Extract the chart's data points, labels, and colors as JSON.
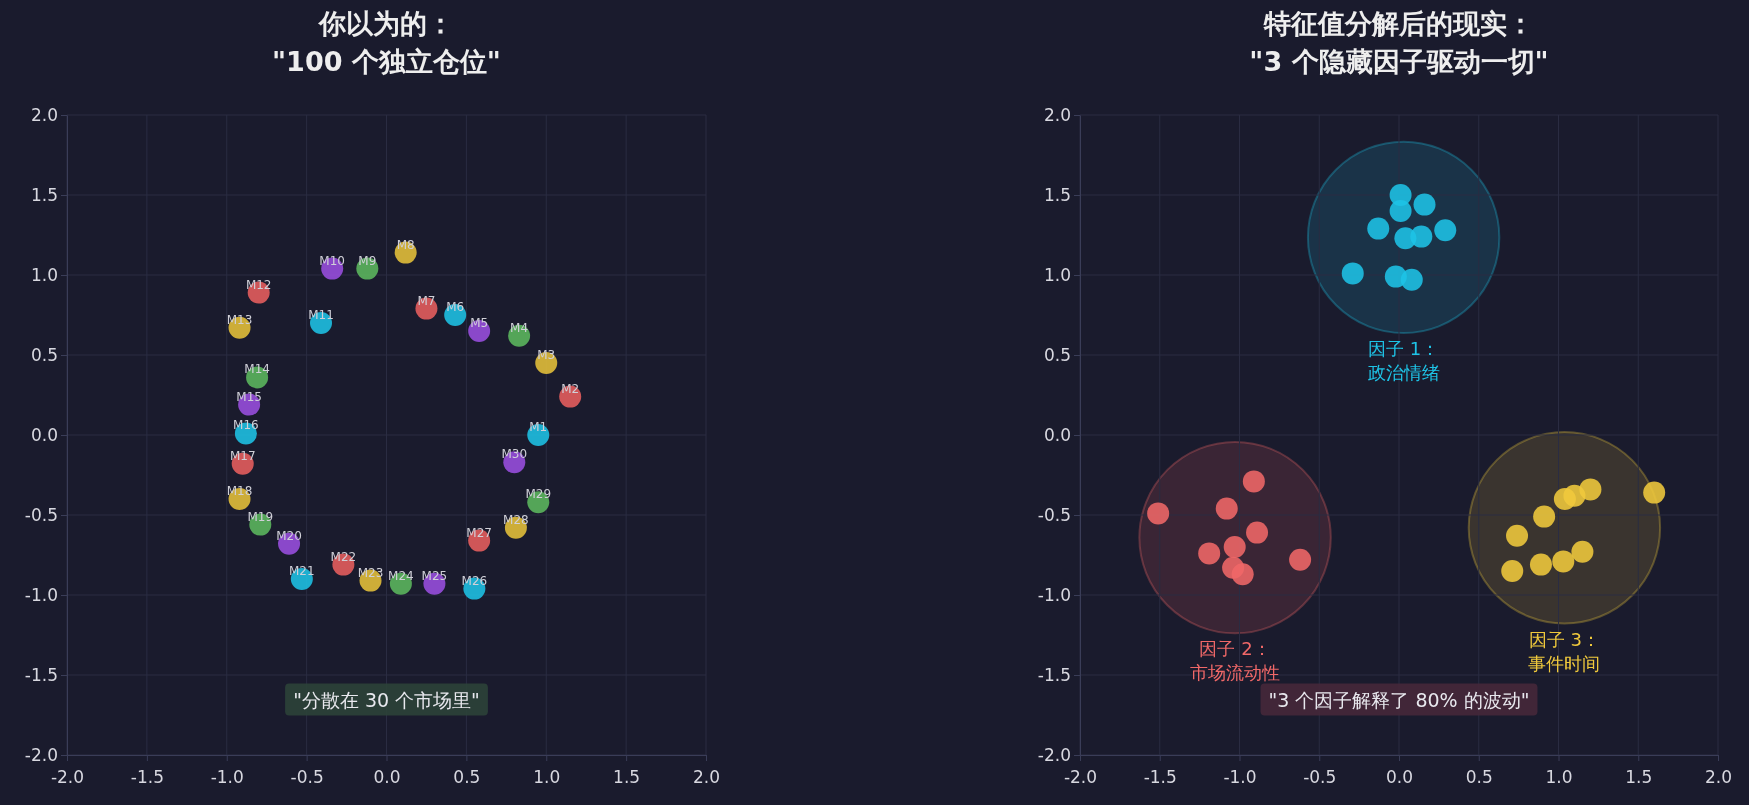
{
  "chart_data": [
    {
      "type": "scatter",
      "title": "你以为的：\n\"100 个独立仓位\"",
      "xlim": [
        -2,
        2
      ],
      "ylim": [
        -2,
        2
      ],
      "xticks": [
        {
          "value": -2,
          "label": "-2.0"
        },
        {
          "value": -1.5,
          "label": "-1.5"
        },
        {
          "value": -1,
          "label": "-1.0"
        },
        {
          "value": -0.5,
          "label": "-0.5"
        },
        {
          "value": 0,
          "label": "0.0"
        },
        {
          "value": 0.5,
          "label": "0.5"
        },
        {
          "value": 1,
          "label": "1.0"
        },
        {
          "value": 1.5,
          "label": "1.5"
        },
        {
          "value": 2,
          "label": "2.0"
        }
      ],
      "yticks": [
        {
          "value": -2,
          "label": "-2.0"
        },
        {
          "value": -1.5,
          "label": "-1.5"
        },
        {
          "value": -1,
          "label": "-1.0"
        },
        {
          "value": -0.5,
          "label": "-0.5"
        },
        {
          "value": 0,
          "label": "0.0"
        },
        {
          "value": 0.5,
          "label": "0.5"
        },
        {
          "value": 1,
          "label": "1.0"
        },
        {
          "value": 1.5,
          "label": "1.5"
        },
        {
          "value": 2,
          "label": "2.0"
        }
      ],
      "grid": true,
      "legend": false,
      "marker": "circle",
      "annotations": [
        "\"分散在 30 个市场里\""
      ],
      "series": [
        {
          "x": [
            0.95,
            1.15,
            1.0,
            0.83,
            0.58,
            0.43,
            0.25,
            0.12,
            -0.12,
            -0.34,
            -0.41,
            -0.8,
            -0.92,
            -0.81,
            -0.86,
            -0.88,
            -0.9,
            -0.92,
            -0.79,
            -0.61,
            -0.53,
            -0.27,
            -0.1,
            0.09,
            0.3,
            0.55,
            0.58,
            0.81,
            0.95,
            0.8
          ],
          "values": [
            0.0,
            0.24,
            0.45,
            0.62,
            0.65,
            0.75,
            0.79,
            1.14,
            1.04,
            1.04,
            0.7,
            0.89,
            0.67,
            0.36,
            0.19,
            0.01,
            -0.18,
            -0.4,
            -0.56,
            -0.68,
            -0.9,
            -0.81,
            -0.91,
            -0.93,
            -0.93,
            -0.96,
            -0.66,
            -0.58,
            -0.42,
            -0.17
          ],
          "value_labels": [
            "M1",
            "M2",
            "M3",
            "M4",
            "M5",
            "M6",
            "M7",
            "M8",
            "M9",
            "M10",
            "M11",
            "M12",
            "M13",
            "M14",
            "M15",
            "M16",
            "M17",
            "M18",
            "M19",
            "M20",
            "M21",
            "M22",
            "M23",
            "M24",
            "M25",
            "M26",
            "M27",
            "M28",
            "M29",
            "M30"
          ],
          "colors": [
            "#1ec3e6",
            "#e85f5f",
            "#e6c23a",
            "#5cb85f",
            "#9a4fe0",
            "#1ec3e6",
            "#e85f5f",
            "#e6c23a",
            "#5cb85f",
            "#9a4fe0",
            "#1ec3e6",
            "#e85f5f",
            "#e6c23a",
            "#5cb85f",
            "#9a4fe0",
            "#1ec3e6",
            "#e85f5f",
            "#e6c23a",
            "#5cb85f",
            "#9a4fe0",
            "#1ec3e6",
            "#e85f5f",
            "#e6c23a",
            "#5cb85f",
            "#9a4fe0",
            "#1ec3e6",
            "#e85f5f",
            "#e6c23a",
            "#5cb85f",
            "#9a4fe0"
          ]
        }
      ]
    },
    {
      "type": "scatter",
      "title": "特征值分解后的现实：\n\"3 个隐藏因子驱动一切\"",
      "xlim": [
        -2,
        2
      ],
      "ylim": [
        -2,
        2
      ],
      "xticks": [
        {
          "value": -2,
          "label": "-2.0"
        },
        {
          "value": -1.5,
          "label": "-1.5"
        },
        {
          "value": -1,
          "label": "-1.0"
        },
        {
          "value": -0.5,
          "label": "-0.5"
        },
        {
          "value": 0,
          "label": "0.0"
        },
        {
          "value": 0.5,
          "label": "0.5"
        },
        {
          "value": 1,
          "label": "1.0"
        },
        {
          "value": 1.5,
          "label": "1.5"
        },
        {
          "value": 2,
          "label": "2.0"
        }
      ],
      "yticks": [
        {
          "value": -2,
          "label": "-2.0"
        },
        {
          "value": -1.5,
          "label": "-1.5"
        },
        {
          "value": -1,
          "label": "-1.0"
        },
        {
          "value": -0.5,
          "label": "-0.5"
        },
        {
          "value": 0,
          "label": "0.0"
        },
        {
          "value": 0.5,
          "label": "0.5"
        },
        {
          "value": 1,
          "label": "1.0"
        },
        {
          "value": 1.5,
          "label": "1.5"
        },
        {
          "value": 2,
          "label": "2.0"
        }
      ],
      "grid": true,
      "legend": false,
      "marker": "circle",
      "annotations": [
        "\"3 个因子解释了 80% 的波动\""
      ],
      "series": [
        {
          "name": "因子 1：政治情绪",
          "color": "#1ec3e6",
          "x": [
            0.01,
            0.01,
            0.16,
            -0.13,
            0.04,
            0.14,
            0.29,
            -0.29,
            -0.02,
            0.08
          ],
          "values": [
            1.5,
            1.4,
            1.44,
            1.29,
            1.23,
            1.24,
            1.28,
            1.01,
            0.99,
            0.97
          ]
        },
        {
          "name": "因子 2：市场流动性",
          "color": "#f06868",
          "x": [
            -1.51,
            -0.91,
            -1.08,
            -0.89,
            -1.19,
            -1.03,
            -1.04,
            -0.98,
            -0.62
          ],
          "values": [
            -0.49,
            -0.29,
            -0.46,
            -0.61,
            -0.74,
            -0.7,
            -0.83,
            -0.87,
            -0.78
          ]
        },
        {
          "name": "因子 3：事件时间",
          "color": "#f0c93c",
          "x": [
            1.6,
            1.2,
            1.1,
            1.04,
            0.91,
            0.74,
            0.71,
            0.89,
            1.03,
            1.15
          ],
          "values": [
            -0.36,
            -0.34,
            -0.38,
            -0.4,
            -0.51,
            -0.63,
            -0.85,
            -0.81,
            -0.79,
            -0.73
          ]
        }
      ]
    }
  ]
}
